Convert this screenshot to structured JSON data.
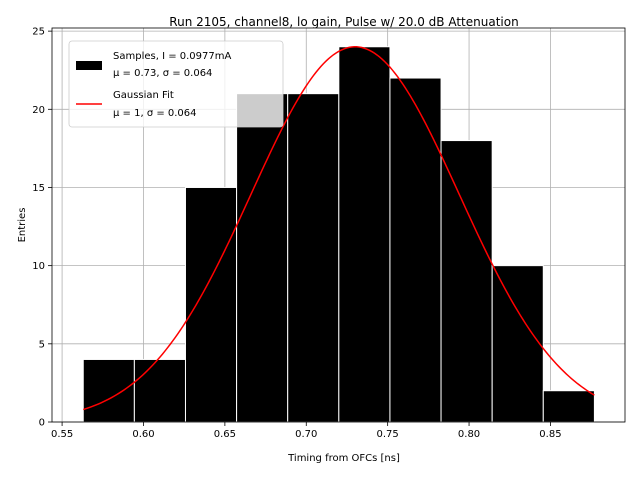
{
  "chart_data": {
    "type": "bar",
    "title": "Run 2105, channel8, lo gain, Pulse w/ 20.0 dB Attenuation",
    "xlabel": "Timing from OFCs [ns]",
    "ylabel": "Entries",
    "xlim": [
      0.5438,
      0.8958
    ],
    "ylim": [
      0,
      25.2
    ],
    "xticks": [
      0.55,
      0.6,
      0.65,
      0.7,
      0.75,
      0.8,
      0.85
    ],
    "xtick_labels": [
      "0.55",
      "0.60",
      "0.65",
      "0.70",
      "0.75",
      "0.80",
      "0.85"
    ],
    "yticks": [
      0,
      5,
      10,
      15,
      20,
      25
    ],
    "ytick_labels": [
      "0",
      "5",
      "10",
      "15",
      "20",
      "25"
    ],
    "grid": true,
    "legend_position": "top-left",
    "histogram": {
      "name": "Samples, I = 0.0977mA",
      "stats_line": "μ = 0.73, σ = 0.064",
      "color": "#000000",
      "edge_color": "#ffffff",
      "bin_edges": [
        0.563,
        0.5944,
        0.6258,
        0.6572,
        0.6886,
        0.72,
        0.7514,
        0.7828,
        0.8142,
        0.8456,
        0.877
      ],
      "counts": [
        4,
        4,
        15,
        21,
        21,
        24,
        22,
        18,
        10,
        2
      ]
    },
    "fit": {
      "name": "Gaussian Fit",
      "stats_line": "μ = 1, σ = 0.064",
      "color": "#ff0000",
      "mu": 0.73,
      "sigma": 0.064,
      "amplitude": 24,
      "x_range": [
        0.563,
        0.877
      ]
    }
  }
}
